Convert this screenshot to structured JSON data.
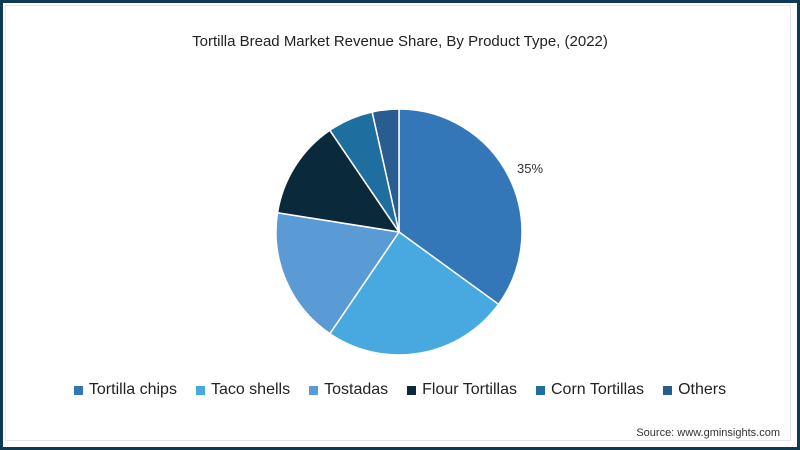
{
  "chart_data": {
    "type": "pie",
    "title": "Tortilla Bread Market Revenue Share, By Product Type, (2022)",
    "categories": [
      "Tortilla chips",
      "Taco shells",
      "Tostadas",
      "Flour Tortillas",
      "Corn Tortillas",
      "Others"
    ],
    "values": [
      35,
      24.5,
      18,
      13,
      6,
      3.5
    ],
    "colors": [
      "#3377b8",
      "#47a9e0",
      "#5b9bd5",
      "#0a2a3c",
      "#1f6ea0",
      "#2a5d8f"
    ],
    "annotations": [
      {
        "category": "Tortilla chips",
        "text": "35%"
      }
    ],
    "legend_position": "bottom"
  },
  "title": "Tortilla Bread Market Revenue Share, By Product Type, (2022)",
  "slice_label": "35%",
  "legend": [
    "Tortilla chips",
    "Taco shells",
    "Tostadas",
    "Flour Tortillas",
    "Corn Tortillas",
    "Others"
  ],
  "source": "Source: www.gminsights.com"
}
